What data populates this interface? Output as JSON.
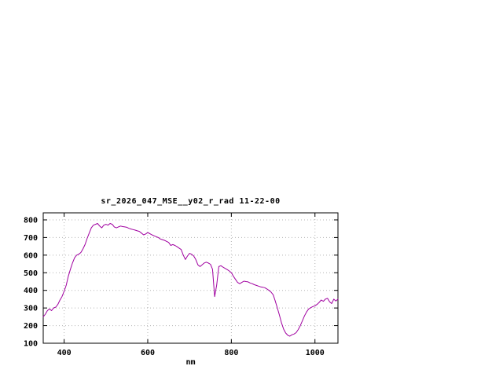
{
  "window": {
    "background": "#ffffff"
  },
  "chart_data": {
    "type": "line",
    "title": "sr_2026_047_MSE__y02_r_rad 11-22-00",
    "xlabel": "nm",
    "ylabel": "",
    "xlim": [
      350,
      1055
    ],
    "ylim": [
      100,
      840
    ],
    "xticks": [
      400,
      600,
      800,
      1000
    ],
    "yticks": [
      100,
      200,
      300,
      400,
      500,
      600,
      700,
      800
    ],
    "grid": true,
    "grid_style": "dotted",
    "legend_position": "none",
    "colors": {
      "line": "#a000a0",
      "grid": "#b4b4b4",
      "border": "#000000",
      "text": "#000000",
      "background": "#ffffff"
    },
    "series": [
      {
        "name": "",
        "points": [
          [
            350,
            250
          ],
          [
            355,
            265
          ],
          [
            360,
            285
          ],
          [
            365,
            295
          ],
          [
            370,
            285
          ],
          [
            375,
            300
          ],
          [
            380,
            305
          ],
          [
            385,
            320
          ],
          [
            390,
            345
          ],
          [
            395,
            365
          ],
          [
            400,
            395
          ],
          [
            405,
            430
          ],
          [
            410,
            480
          ],
          [
            415,
            520
          ],
          [
            420,
            555
          ],
          [
            425,
            585
          ],
          [
            430,
            600
          ],
          [
            435,
            605
          ],
          [
            440,
            615
          ],
          [
            445,
            635
          ],
          [
            450,
            660
          ],
          [
            455,
            695
          ],
          [
            460,
            725
          ],
          [
            465,
            755
          ],
          [
            470,
            770
          ],
          [
            475,
            775
          ],
          [
            480,
            780
          ],
          [
            485,
            765
          ],
          [
            490,
            755
          ],
          [
            495,
            770
          ],
          [
            500,
            775
          ],
          [
            505,
            770
          ],
          [
            510,
            780
          ],
          [
            515,
            775
          ],
          [
            520,
            760
          ],
          [
            525,
            755
          ],
          [
            530,
            760
          ],
          [
            535,
            765
          ],
          [
            540,
            762
          ],
          [
            545,
            760
          ],
          [
            550,
            758
          ],
          [
            555,
            752
          ],
          [
            560,
            748
          ],
          [
            565,
            745
          ],
          [
            570,
            742
          ],
          [
            575,
            738
          ],
          [
            580,
            735
          ],
          [
            585,
            725
          ],
          [
            590,
            715
          ],
          [
            595,
            720
          ],
          [
            600,
            728
          ],
          [
            605,
            722
          ],
          [
            610,
            715
          ],
          [
            615,
            710
          ],
          [
            620,
            705
          ],
          [
            625,
            700
          ],
          [
            630,
            692
          ],
          [
            635,
            688
          ],
          [
            640,
            684
          ],
          [
            645,
            678
          ],
          [
            650,
            672
          ],
          [
            655,
            655
          ],
          [
            660,
            660
          ],
          [
            665,
            655
          ],
          [
            670,
            648
          ],
          [
            675,
            640
          ],
          [
            680,
            632
          ],
          [
            685,
            600
          ],
          [
            690,
            575
          ],
          [
            695,
            595
          ],
          [
            700,
            610
          ],
          [
            705,
            605
          ],
          [
            710,
            595
          ],
          [
            715,
            575
          ],
          [
            720,
            545
          ],
          [
            725,
            535
          ],
          [
            730,
            545
          ],
          [
            735,
            555
          ],
          [
            740,
            560
          ],
          [
            745,
            555
          ],
          [
            750,
            548
          ],
          [
            755,
            520
          ],
          [
            760,
            365
          ],
          [
            765,
            430
          ],
          [
            770,
            535
          ],
          [
            775,
            540
          ],
          [
            780,
            532
          ],
          [
            785,
            525
          ],
          [
            790,
            518
          ],
          [
            795,
            510
          ],
          [
            800,
            500
          ],
          [
            805,
            480
          ],
          [
            810,
            462
          ],
          [
            815,
            445
          ],
          [
            820,
            438
          ],
          [
            825,
            445
          ],
          [
            830,
            452
          ],
          [
            835,
            450
          ],
          [
            840,
            448
          ],
          [
            845,
            442
          ],
          [
            850,
            438
          ],
          [
            855,
            432
          ],
          [
            860,
            428
          ],
          [
            865,
            424
          ],
          [
            870,
            420
          ],
          [
            875,
            418
          ],
          [
            880,
            415
          ],
          [
            885,
            408
          ],
          [
            890,
            400
          ],
          [
            895,
            390
          ],
          [
            900,
            375
          ],
          [
            905,
            340
          ],
          [
            910,
            300
          ],
          [
            915,
            260
          ],
          [
            920,
            215
          ],
          [
            925,
            180
          ],
          [
            930,
            158
          ],
          [
            935,
            145
          ],
          [
            940,
            140
          ],
          [
            945,
            148
          ],
          [
            950,
            152
          ],
          [
            955,
            160
          ],
          [
            960,
            178
          ],
          [
            965,
            200
          ],
          [
            970,
            228
          ],
          [
            975,
            255
          ],
          [
            980,
            278
          ],
          [
            985,
            295
          ],
          [
            990,
            302
          ],
          [
            995,
            308
          ],
          [
            1000,
            312
          ],
          [
            1005,
            320
          ],
          [
            1010,
            332
          ],
          [
            1015,
            345
          ],
          [
            1020,
            338
          ],
          [
            1025,
            350
          ],
          [
            1030,
            355
          ],
          [
            1035,
            335
          ],
          [
            1040,
            325
          ],
          [
            1045,
            350
          ],
          [
            1050,
            340
          ],
          [
            1055,
            350
          ]
        ]
      }
    ]
  }
}
